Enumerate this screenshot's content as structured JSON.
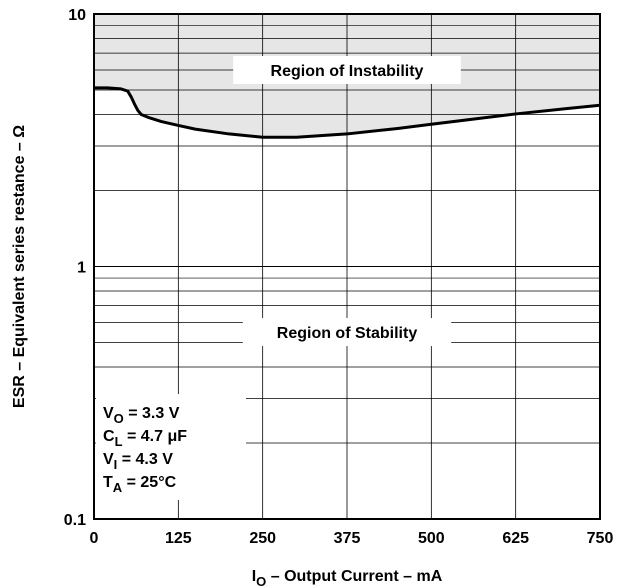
{
  "chart_data": {
    "type": "line",
    "title": "",
    "xlabel": {
      "main": "I",
      "sub": "O",
      "rest": " – Output Current – mA"
    },
    "ylabel": "ESR – Equivalent series restance – Ω",
    "xlim": [
      0,
      750
    ],
    "ylim": [
      0.1,
      10
    ],
    "yscale": "log",
    "grid": true,
    "x_ticks": [
      0,
      125,
      250,
      375,
      500,
      625,
      750
    ],
    "y_ticks": [
      {
        "value": 0.1,
        "label": "0.1"
      },
      {
        "value": 1,
        "label": "1"
      },
      {
        "value": 10,
        "label": "10"
      }
    ],
    "series": [
      {
        "x": [
          0,
          20,
          40,
          50,
          55,
          60,
          65,
          70,
          80,
          100,
          125,
          150,
          200,
          250,
          300,
          375,
          450,
          500,
          550,
          625,
          700,
          750
        ],
        "y": [
          5.1,
          5.1,
          5.05,
          4.95,
          4.7,
          4.4,
          4.15,
          4.0,
          3.9,
          3.75,
          3.62,
          3.5,
          3.35,
          3.25,
          3.25,
          3.35,
          3.52,
          3.66,
          3.8,
          4.02,
          4.22,
          4.35
        ]
      }
    ],
    "annotations": [
      {
        "text": "Region of Instability",
        "x": 375,
        "y": 6.0
      },
      {
        "text": "Region of Stability",
        "x": 375,
        "y": 0.55
      }
    ],
    "conditions": [
      {
        "main": "V",
        "sub": "O",
        "rest": " = 3.3 V"
      },
      {
        "main": "C",
        "sub": "L",
        "rest": " = 4.7 μF"
      },
      {
        "main": "V",
        "sub": "I",
        "rest": " = 4.3 V"
      },
      {
        "main": "T",
        "sub": "A",
        "rest": " = 25°C"
      }
    ],
    "instability_fill": "#e6e6e6",
    "curve_color": "#000000"
  }
}
